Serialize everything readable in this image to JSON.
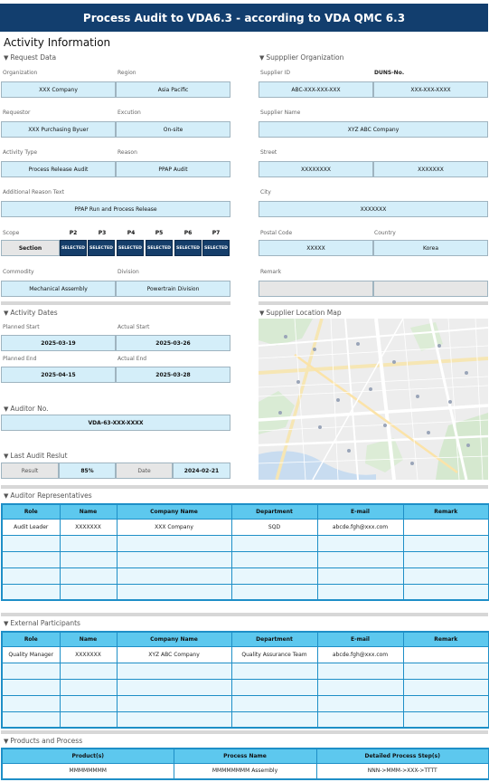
{
  "banner": "Process Audit to VDA6.3 - according to VDA QMC 6.3",
  "page_title": "Activity Information",
  "request": {
    "section": "Request Data",
    "organization_label": "Organization",
    "organization": "XXX Company",
    "region_label": "Region",
    "region": "Asia Pacific",
    "requestor_label": "Requestor",
    "requestor": "XXX Purchasing Byuer",
    "execution_label": "Excution",
    "execution": "On-site",
    "activity_type_label": "Activity Type",
    "activity_type": "Process Release Audit",
    "reason_label": "Reason",
    "reason": "PPAP Audit",
    "additional_label": "Additional Reason Text",
    "additional": "PPAP Run and Process Release",
    "scope_label": "Scope",
    "scope_value": "Section",
    "phases": [
      {
        "label": "P2",
        "value": "SELECTED"
      },
      {
        "label": "P3",
        "value": "SELECTED"
      },
      {
        "label": "P4",
        "value": "SELECTED"
      },
      {
        "label": "P5",
        "value": "SELECTED"
      },
      {
        "label": "P6",
        "value": "SELECTED"
      },
      {
        "label": "P7",
        "value": "SELECTED"
      }
    ],
    "commodity_label": "Commodity",
    "commodity": "Mechanical Assembly",
    "division_label": "Division",
    "division": "Powertrain Division"
  },
  "supplier": {
    "section": "Suppplier Organization",
    "id_label": "Supplier ID",
    "id": "ABC-XXX-XXX-XXX",
    "duns_label": "DUNS-No.",
    "duns": "XXX-XXX-XXXX",
    "name_label": "Supplier Name",
    "name": "XYZ ABC Company",
    "street_label": "Street",
    "street1": "XXXXXXXX",
    "street2": "XXXXXXX",
    "city_label": "City",
    "city": "XXXXXXX",
    "postal_label": "Postal Code",
    "postal": "XXXXX",
    "country_label": "Country",
    "country": "Korea",
    "remark_label": "Remark",
    "remark1": "",
    "remark2": ""
  },
  "dates": {
    "section": "Activity Dates",
    "planned_start_label": "Planned Start",
    "planned_start": "2025-03-19",
    "actual_start_label": "Actual Start",
    "actual_start": "2025-03-26",
    "planned_end_label": "Planned End",
    "planned_end": "2025-04-15",
    "actual_end_label": "Actual End",
    "actual_end": "2025-03-28"
  },
  "map": {
    "section": "Supplier Location Map"
  },
  "auditor_no": {
    "section": "Auditor No.",
    "value": "VDA-63-XXX-XXXX"
  },
  "last_audit": {
    "section": "Last Audit Reslut",
    "result_label": "Result",
    "result": "85%",
    "date_label": "Date",
    "date": "2024-02-21"
  },
  "auditor_reps": {
    "section": "Auditor Representatives",
    "headers": [
      "Role",
      "Name",
      "Company Name",
      "Department",
      "E-mail",
      "Remark"
    ],
    "rows": [
      [
        "Audit Leader",
        "XXXXXXX",
        "XXX Company",
        "SQD",
        "abcde.fgh@xxx.com",
        ""
      ],
      [
        "",
        "",
        "",
        "",
        "",
        ""
      ],
      [
        "",
        "",
        "",
        "",
        "",
        ""
      ],
      [
        "",
        "",
        "",
        "",
        "",
        ""
      ],
      [
        "",
        "",
        "",
        "",
        "",
        ""
      ]
    ]
  },
  "external": {
    "section": "External Participants",
    "headers": [
      "Role",
      "Name",
      "Company Name",
      "Department",
      "E-mail",
      "Remark"
    ],
    "rows": [
      [
        "Quality Manager",
        "XXXXXXX",
        "XYZ ABC Company",
        "Quality Assurance Team",
        "abcde.fgh@xxx.com",
        ""
      ],
      [
        "",
        "",
        "",
        "",
        "",
        ""
      ],
      [
        "",
        "",
        "",
        "",
        "",
        ""
      ],
      [
        "",
        "",
        "",
        "",
        "",
        ""
      ],
      [
        "",
        "",
        "",
        "",
        "",
        ""
      ]
    ]
  },
  "products": {
    "section": "Products and Process",
    "headers": [
      "Product(s)",
      "Process Name",
      "Detailed Process Step(s)"
    ],
    "rows": [
      [
        "MMMMMMMM",
        "MMMMMMMM Assembly",
        "NNN->MMM->XXX->TTTT"
      ]
    ]
  }
}
